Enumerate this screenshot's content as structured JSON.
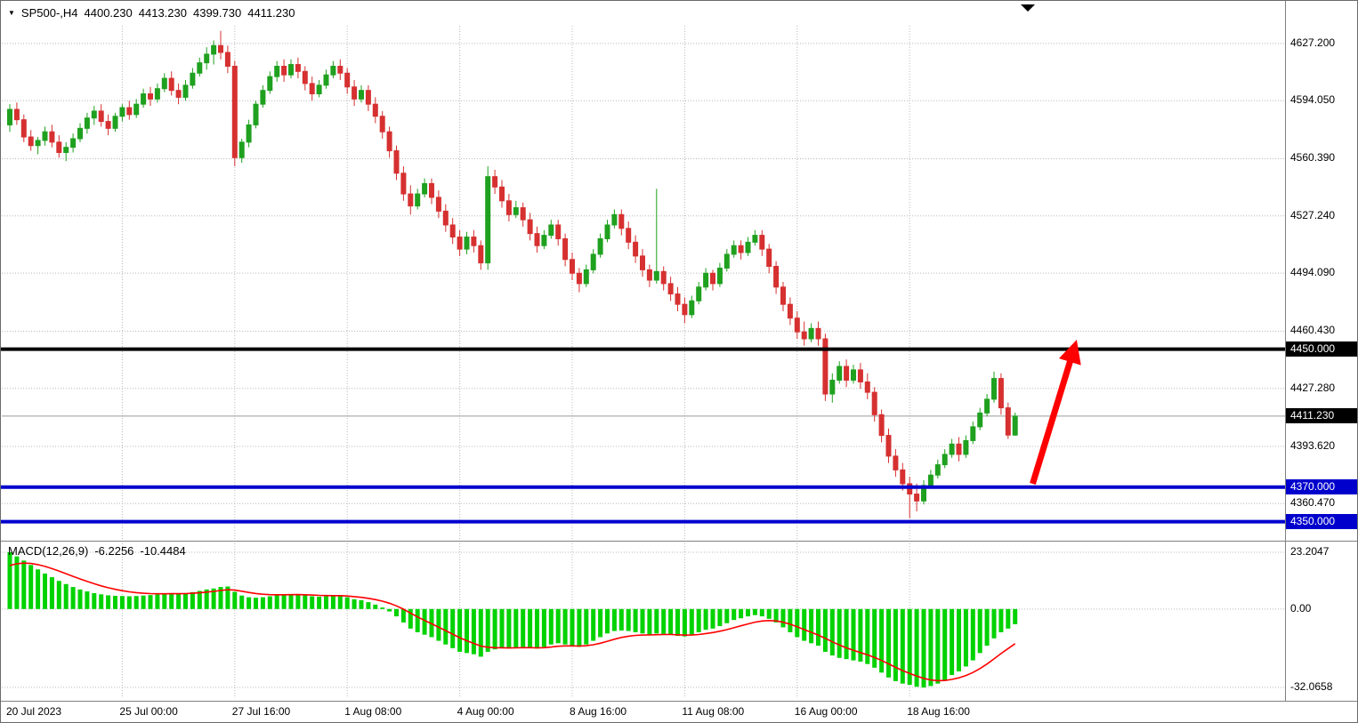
{
  "icons": {
    "window_marker": "▼"
  },
  "header": {
    "symbol_period": "SP500-,H4",
    "open": "4400.230",
    "high": "4413.230",
    "low": "4399.730",
    "close": "4411.230"
  },
  "macd_header": {
    "label": "MACD(12,26,9)",
    "value": "-6.2256",
    "signal": "-10.4484"
  },
  "price_axis": [
    {
      "text": "4627.200",
      "price": 4627.2,
      "style": "normal"
    },
    {
      "text": "4594.050",
      "price": 4594.05,
      "style": "normal"
    },
    {
      "text": "4560.390",
      "price": 4560.39,
      "style": "normal"
    },
    {
      "text": "4527.240",
      "price": 4527.24,
      "style": "normal"
    },
    {
      "text": "4494.090",
      "price": 4494.09,
      "style": "normal"
    },
    {
      "text": "4460.430",
      "price": 4460.43,
      "style": "normal"
    },
    {
      "text": "4450.000",
      "price": 4450.0,
      "style": "black"
    },
    {
      "text": "4427.280",
      "price": 4427.28,
      "style": "normal"
    },
    {
      "text": "4411.230",
      "price": 4411.23,
      "style": "black"
    },
    {
      "text": "4393.620",
      "price": 4393.62,
      "style": "normal"
    },
    {
      "text": "4370.000",
      "price": 4370.0,
      "style": "blue"
    },
    {
      "text": "4360.470",
      "price": 4360.47,
      "style": "normal"
    },
    {
      "text": "4350.000",
      "price": 4350.0,
      "style": "blue"
    }
  ],
  "macd_axis": [
    {
      "text": "23.2047",
      "value": 23.2047
    },
    {
      "text": "0.00",
      "value": 0
    },
    {
      "text": "-32.0658",
      "value": -32.0658
    }
  ],
  "time_axis": [
    {
      "text": "20 Jul 2023",
      "index": 0
    },
    {
      "text": "25 Jul 00:00",
      "index": 16
    },
    {
      "text": "27 Jul 16:00",
      "index": 32
    },
    {
      "text": "1 Aug 08:00",
      "index": 48
    },
    {
      "text": "4 Aug 00:00",
      "index": 64
    },
    {
      "text": "8 Aug 16:00",
      "index": 80
    },
    {
      "text": "11 Aug 08:00",
      "index": 96
    },
    {
      "text": "16 Aug 00:00",
      "index": 112
    },
    {
      "text": "18 Aug 16:00",
      "index": 128
    }
  ],
  "chart_data": {
    "type": "candlestick",
    "title": "SP500-,H4",
    "symbol": "SP500",
    "timeframe": "H4",
    "ylim": [
      4340,
      4639
    ],
    "grid": true,
    "current_price": 4411.23,
    "last_ohlc": {
      "open": 4400.23,
      "high": 4413.23,
      "low": 4399.73,
      "close": 4411.23
    },
    "levels": [
      {
        "price": 4450.0,
        "color": "#000000",
        "width": 4,
        "label": "4450.000"
      },
      {
        "price": 4370.0,
        "color": "#0000CD",
        "width": 4,
        "label": "4370.000"
      },
      {
        "price": 4350.0,
        "color": "#0000CD",
        "width": 4,
        "label": "4350.000"
      }
    ],
    "annotations": [
      {
        "type": "arrow",
        "from": {
          "index": 145.5,
          "price": 4372
        },
        "to": {
          "index": 151.5,
          "price": 4452
        },
        "color": "#FF0000",
        "width": 7
      }
    ],
    "candles_ohlc": [
      [
        4580,
        4592,
        4576,
        4589
      ],
      [
        4589,
        4593,
        4580,
        4583
      ],
      [
        4583,
        4586,
        4570,
        4573
      ],
      [
        4573,
        4577,
        4565,
        4568
      ],
      [
        4568,
        4573,
        4563,
        4571
      ],
      [
        4571,
        4579,
        4568,
        4576
      ],
      [
        4576,
        4580,
        4567,
        4570
      ],
      [
        4570,
        4574,
        4561,
        4564
      ],
      [
        4564,
        4570,
        4559,
        4567
      ],
      [
        4567,
        4575,
        4564,
        4572
      ],
      [
        4572,
        4581,
        4570,
        4578
      ],
      [
        4578,
        4587,
        4575,
        4584
      ],
      [
        4584,
        4591,
        4580,
        4588
      ],
      [
        4588,
        4592,
        4579,
        4582
      ],
      [
        4582,
        4586,
        4574,
        4578
      ],
      [
        4578,
        4587,
        4576,
        4585
      ],
      [
        4585,
        4592,
        4582,
        4590
      ],
      [
        4590,
        4594,
        4583,
        4586
      ],
      [
        4586,
        4595,
        4584,
        4592
      ],
      [
        4592,
        4601,
        4590,
        4598
      ],
      [
        4598,
        4602,
        4591,
        4595
      ],
      [
        4595,
        4604,
        4593,
        4601
      ],
      [
        4601,
        4610,
        4599,
        4607
      ],
      [
        4607,
        4611,
        4597,
        4600
      ],
      [
        4600,
        4604,
        4592,
        4596
      ],
      [
        4596,
        4606,
        4594,
        4603
      ],
      [
        4603,
        4613,
        4601,
        4610
      ],
      [
        4610,
        4619,
        4608,
        4616
      ],
      [
        4616,
        4625,
        4612,
        4621
      ],
      [
        4621,
        4629,
        4615,
        4626
      ],
      [
        4626,
        4634.5,
        4618,
        4622
      ],
      [
        4622,
        4626,
        4610,
        4614
      ],
      [
        4614,
        4617,
        4556,
        4561
      ],
      [
        4561,
        4572,
        4558,
        4570
      ],
      [
        4570,
        4583,
        4567,
        4580
      ],
      [
        4580,
        4594,
        4578,
        4592
      ],
      [
        4592,
        4603,
        4590,
        4600
      ],
      [
        4600,
        4611,
        4598,
        4608
      ],
      [
        4608,
        4617,
        4605,
        4614
      ],
      [
        4614,
        4618,
        4605,
        4609
      ],
      [
        4609,
        4618,
        4607,
        4615
      ],
      [
        4615,
        4619,
        4607,
        4611
      ],
      [
        4611,
        4614,
        4600,
        4604
      ],
      [
        4604,
        4608,
        4594,
        4598
      ],
      [
        4598,
        4606,
        4596,
        4603
      ],
      [
        4603,
        4612,
        4601,
        4609
      ],
      [
        4609,
        4617,
        4607,
        4614
      ],
      [
        4614,
        4618,
        4606,
        4610
      ],
      [
        4610,
        4613,
        4598,
        4602
      ],
      [
        4602,
        4606,
        4591,
        4595
      ],
      [
        4595,
        4603,
        4593,
        4600
      ],
      [
        4600,
        4603,
        4588,
        4592
      ],
      [
        4592,
        4596,
        4581,
        4585
      ],
      [
        4585,
        4588,
        4572,
        4576
      ],
      [
        4576,
        4579,
        4561,
        4565
      ],
      [
        4565,
        4568,
        4548,
        4552
      ],
      [
        4552,
        4556,
        4536,
        4540
      ],
      [
        4540,
        4545,
        4528,
        4533
      ],
      [
        4533,
        4543,
        4531,
        4540
      ],
      [
        4540,
        4549,
        4538,
        4546
      ],
      [
        4546,
        4549,
        4534,
        4538
      ],
      [
        4538,
        4542,
        4526,
        4530
      ],
      [
        4530,
        4534,
        4518,
        4522
      ],
      [
        4522,
        4526,
        4511,
        4515
      ],
      [
        4515,
        4519,
        4504,
        4508
      ],
      [
        4508,
        4518,
        4505,
        4515
      ],
      [
        4515,
        4519,
        4506,
        4510
      ],
      [
        4510,
        4513,
        4496,
        4500
      ],
      [
        4500,
        4556,
        4496,
        4550
      ],
      [
        4550,
        4554,
        4540,
        4544
      ],
      [
        4544,
        4548,
        4532,
        4536
      ],
      [
        4536,
        4540,
        4524,
        4528
      ],
      [
        4528,
        4536,
        4526,
        4532
      ],
      [
        4532,
        4535,
        4521,
        4525
      ],
      [
        4525,
        4529,
        4513,
        4517
      ],
      [
        4517,
        4521,
        4506,
        4510
      ],
      [
        4510,
        4519,
        4508,
        4516
      ],
      [
        4516,
        4525,
        4514,
        4522
      ],
      [
        4522,
        4525,
        4510,
        4514
      ],
      [
        4514,
        4517,
        4498,
        4502
      ],
      [
        4502,
        4506,
        4490,
        4494
      ],
      [
        4494,
        4497,
        4483,
        4488
      ],
      [
        4488,
        4499,
        4486,
        4496
      ],
      [
        4496,
        4508,
        4494,
        4505
      ],
      [
        4505,
        4517,
        4503,
        4514
      ],
      [
        4514,
        4525,
        4512,
        4522
      ],
      [
        4522,
        4531,
        4520,
        4528
      ],
      [
        4528,
        4531,
        4516,
        4520
      ],
      [
        4520,
        4524,
        4508,
        4512
      ],
      [
        4512,
        4516,
        4500,
        4504
      ],
      [
        4504,
        4508,
        4492,
        4496
      ],
      [
        4496,
        4499,
        4486,
        4490
      ],
      [
        4490,
        4543,
        4488,
        4495
      ],
      [
        4495,
        4498,
        4484,
        4488
      ],
      [
        4488,
        4492,
        4478,
        4482
      ],
      [
        4482,
        4486,
        4472,
        4476
      ],
      [
        4476,
        4480,
        4465,
        4470
      ],
      [
        4470,
        4481,
        4468,
        4478
      ],
      [
        4478,
        4489,
        4476,
        4486
      ],
      [
        4486,
        4497,
        4484,
        4494
      ],
      [
        4494,
        4496,
        4484,
        4488
      ],
      [
        4488,
        4500,
        4486,
        4497
      ],
      [
        4497,
        4508,
        4495,
        4505
      ],
      [
        4505,
        4513,
        4503,
        4510
      ],
      [
        4510,
        4513,
        4502,
        4506
      ],
      [
        4506,
        4515,
        4504,
        4512
      ],
      [
        4512,
        4519,
        4510,
        4516
      ],
      [
        4516,
        4519,
        4504,
        4508
      ],
      [
        4508,
        4511,
        4494,
        4498
      ],
      [
        4498,
        4501,
        4482,
        4486
      ],
      [
        4486,
        4489,
        4472,
        4476
      ],
      [
        4476,
        4480,
        4464,
        4468
      ],
      [
        4468,
        4472,
        4456,
        4460
      ],
      [
        4460,
        4466,
        4452,
        4456
      ],
      [
        4456,
        4465,
        4454,
        4462
      ],
      [
        4462,
        4466,
        4452,
        4456
      ],
      [
        4456,
        4459,
        4420,
        4424
      ],
      [
        4424,
        4436,
        4419,
        4432
      ],
      [
        4432,
        4443,
        4430,
        4440
      ],
      [
        4440,
        4444,
        4428,
        4432
      ],
      [
        4432,
        4441,
        4430,
        4438
      ],
      [
        4438,
        4442,
        4427,
        4431
      ],
      [
        4431,
        4436,
        4421,
        4425
      ],
      [
        4425,
        4428,
        4408,
        4412
      ],
      [
        4412,
        4415,
        4396,
        4400
      ],
      [
        4400,
        4404,
        4384,
        4388
      ],
      [
        4388,
        4392,
        4376,
        4380
      ],
      [
        4380,
        4384,
        4368,
        4372
      ],
      [
        4372,
        4376,
        4352,
        4366
      ],
      [
        4366,
        4372,
        4356,
        4362
      ],
      [
        4362,
        4374,
        4360,
        4371
      ],
      [
        4371,
        4380,
        4369,
        4377
      ],
      [
        4377,
        4386,
        4375,
        4383
      ],
      [
        4383,
        4392,
        4381,
        4389
      ],
      [
        4389,
        4398,
        4387,
        4395
      ],
      [
        4395,
        4399,
        4385,
        4389
      ],
      [
        4389,
        4400,
        4387,
        4397
      ],
      [
        4397,
        4408,
        4395,
        4405
      ],
      [
        4405,
        4416,
        4403,
        4413
      ],
      [
        4413,
        4424,
        4411,
        4421
      ],
      [
        4421,
        4437,
        4419,
        4433
      ],
      [
        4433,
        4436,
        4412,
        4416
      ],
      [
        4416,
        4419,
        4398,
        4400.2
      ],
      [
        4400.2,
        4413.2,
        4399.7,
        4411.2
      ]
    ],
    "macd": {
      "params": "12,26,9",
      "ylim": [
        -32.0658,
        23.2047
      ],
      "last_macd": -6.2256,
      "last_signal": -10.4484,
      "values": [
        23.2,
        21.5,
        19.8,
        18,
        16.2,
        14.5,
        13,
        11.5,
        10.2,
        9,
        8,
        7.2,
        6.5,
        6,
        5.6,
        5.4,
        5.3,
        5.2,
        5.3,
        5.5,
        5.7,
        5.9,
        6.2,
        6.4,
        6.3,
        6.5,
        6.9,
        7.4,
        8,
        8.4,
        9,
        9.2,
        7,
        5.5,
        4.8,
        4.6,
        4.8,
        5.2,
        5.6,
        5.8,
        6,
        6,
        5.6,
        5.2,
        5,
        5.2,
        5.4,
        5.4,
        4.8,
        4,
        3.6,
        2.8,
        1.8,
        0.6,
        -1,
        -3,
        -5.5,
        -8,
        -9.5,
        -10.5,
        -11.5,
        -13,
        -14.5,
        -16,
        -17.5,
        -18,
        -18.5,
        -19.5,
        -17.5,
        -16.5,
        -16,
        -16.2,
        -15.8,
        -15.5,
        -15.8,
        -16.2,
        -15.5,
        -14.5,
        -14,
        -14.5,
        -15,
        -15.5,
        -14.5,
        -13,
        -11.5,
        -10,
        -9,
        -8.8,
        -9,
        -9.5,
        -10,
        -10.5,
        -10,
        -10.2,
        -10.5,
        -11,
        -11.2,
        -10.5,
        -9.5,
        -8.5,
        -8,
        -7,
        -5.8,
        -4.5,
        -3.8,
        -3,
        -2.5,
        -3,
        -4,
        -5.5,
        -7.5,
        -9.5,
        -11.5,
        -13,
        -14,
        -15,
        -17.5,
        -19,
        -20,
        -20.5,
        -21,
        -21.5,
        -22.5,
        -24,
        -26,
        -28,
        -29.5,
        -30.5,
        -31,
        -31.8,
        -32.1,
        -31.5,
        -30.5,
        -29,
        -27,
        -25.5,
        -23.5,
        -21,
        -18,
        -15,
        -12,
        -9.5,
        -8,
        -6.2
      ]
    }
  },
  "colors": {
    "up": "#1fa11f",
    "down": "#d63030",
    "macd_bar": "#00d200",
    "macd_signal": "#ff0000",
    "badge_black": "#000000",
    "badge_blue": "#0000CD",
    "grid": "#b8b8b8",
    "separator": "#808080",
    "current_price_line": "#9a9a9a",
    "background": "#ffffff"
  }
}
